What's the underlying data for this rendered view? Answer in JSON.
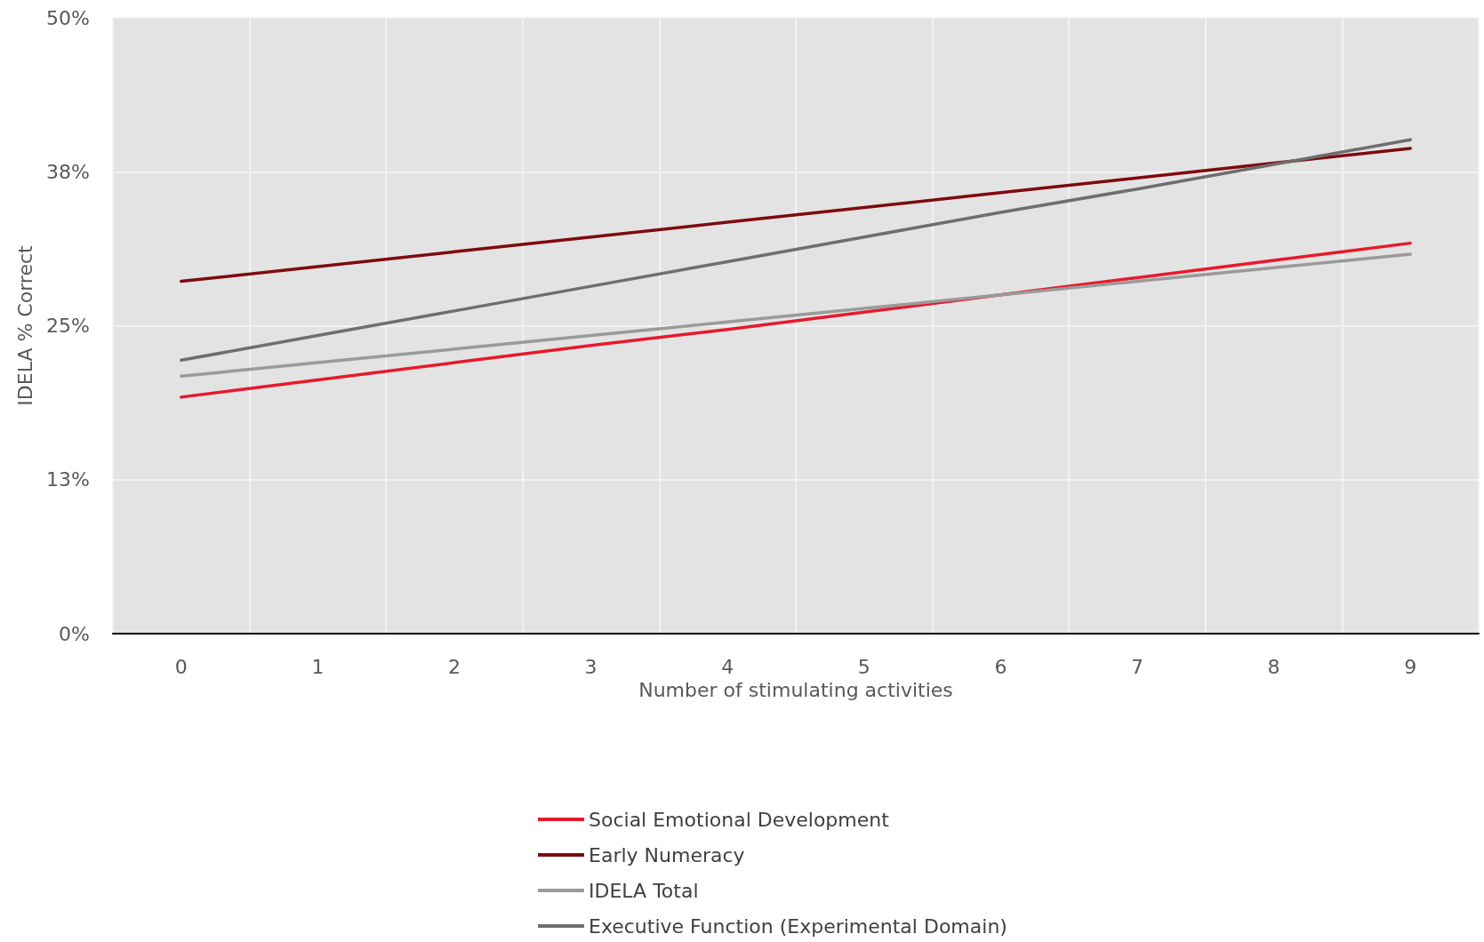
{
  "chart_data": {
    "type": "line",
    "xlabel": "Number of stimulating activities",
    "ylabel": "IDELA % Correct",
    "categories": [
      "0",
      "1",
      "2",
      "3",
      "4",
      "5",
      "6",
      "7",
      "8",
      "9"
    ],
    "series": [
      {
        "name": "Social Emotional Development",
        "color": "#e8192c",
        "values": [
          19.2,
          20.6,
          22.0,
          23.4,
          24.7,
          26.1,
          27.5,
          28.9,
          30.3,
          31.7
        ]
      },
      {
        "name": "Early Numeracy",
        "color": "#7f0a0f",
        "values": [
          28.6,
          29.8,
          31.0,
          32.2,
          33.4,
          34.6,
          35.8,
          37.0,
          38.2,
          39.4
        ]
      },
      {
        "name": "IDELA Total",
        "color": "#9a9a9a",
        "values": [
          20.9,
          22.0,
          23.1,
          24.2,
          25.3,
          26.4,
          27.5,
          28.6,
          29.7,
          30.8
        ]
      },
      {
        "name": "Executive Function (Experimental Domain)",
        "color": "#6e6e6e",
        "values": [
          22.2,
          24.2,
          26.2,
          28.2,
          30.2,
          32.2,
          34.2,
          36.1,
          38.1,
          40.1
        ]
      }
    ],
    "ylim": [
      0,
      50
    ],
    "yticks": [
      {
        "value": 0,
        "label": "0%"
      },
      {
        "value": 12.5,
        "label": "13%"
      },
      {
        "value": 25,
        "label": "25%"
      },
      {
        "value": 37.5,
        "label": "38%"
      },
      {
        "value": 50,
        "label": "50%"
      }
    ],
    "grid": true,
    "legend": "bottom",
    "marker": "none",
    "line_style": "solid"
  }
}
